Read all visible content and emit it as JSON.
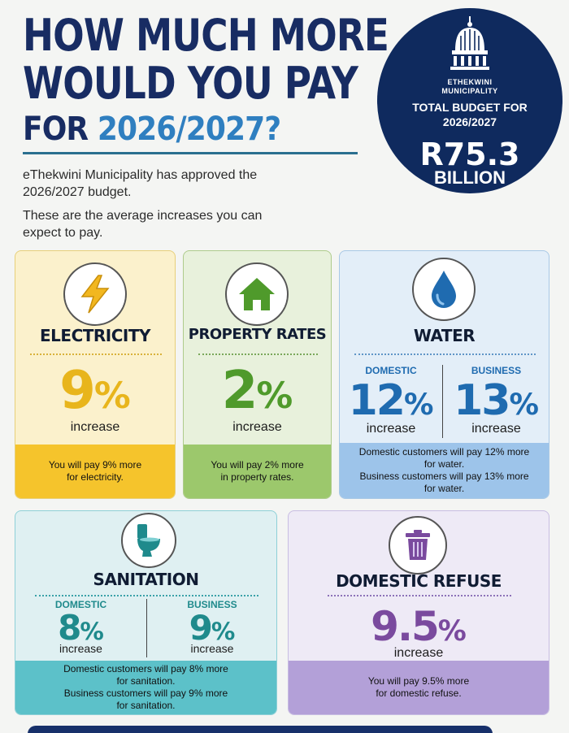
{
  "header": {
    "line1": "HOW MUCH MORE",
    "line2": "WOULD YOU PAY",
    "line3_prefix": "FOR ",
    "line3_year": "2026/2027?",
    "intro1": "eThekwini Municipality has approved the 2026/2027 budget.",
    "intro2": "These are the average increases you can expect to pay."
  },
  "badge": {
    "logo_text_1": "ETHEKWINI",
    "logo_text_2": "MUNICIPALITY",
    "title_1": "TOTAL BUDGET FOR",
    "title_2": "2026/2027",
    "amount": "R75.3",
    "unit": "BILLION"
  },
  "cards": {
    "electricity": {
      "icon": "lightning-icon",
      "title": "ELECTRICITY",
      "value": "9",
      "pct": "%",
      "increase": "increase",
      "note1": "You will pay 9% more",
      "note2": "for electricity."
    },
    "property": {
      "icon": "house-icon",
      "title": "PROPERTY RATES",
      "value": "2",
      "pct": "%",
      "increase": "increase",
      "note1": "You will pay 2% more",
      "note2": "in property rates."
    },
    "water": {
      "icon": "water-drop-icon",
      "title": "WATER",
      "domestic_label": "DOMESTIC",
      "domestic_value": "12",
      "business_label": "BUSINESS",
      "business_value": "13",
      "pct": "%",
      "increase": "increase",
      "note1": "Domestic customers will pay 12% more",
      "note2": "for water.",
      "note3": "Business customers will pay 13% more",
      "note4": "for water."
    },
    "sanitation": {
      "icon": "toilet-icon",
      "title": "SANITATION",
      "domestic_label": "DOMESTIC",
      "domestic_value": "8",
      "business_label": "BUSINESS",
      "business_value": "9",
      "pct": "%",
      "increase": "increase",
      "note1": "Domestic customers will pay 8% more",
      "note2": "for sanitation.",
      "note3": "Business customers will pay 9% more",
      "note4": "for sanitation."
    },
    "refuse": {
      "icon": "trash-bin-icon",
      "title": "DOMESTIC REFUSE",
      "value": "9.5",
      "pct": "%",
      "increase": "increase",
      "note1": "You will pay 9.5% more",
      "note2": "for domestic refuse."
    }
  },
  "colors": {
    "navy": "#182c63",
    "blue": "#2f7fc0",
    "electricity": "#e8b51c",
    "property": "#4f9a2b",
    "water": "#1f6bb0",
    "sanitation": "#1f8a8c",
    "refuse": "#7a4a9e"
  }
}
